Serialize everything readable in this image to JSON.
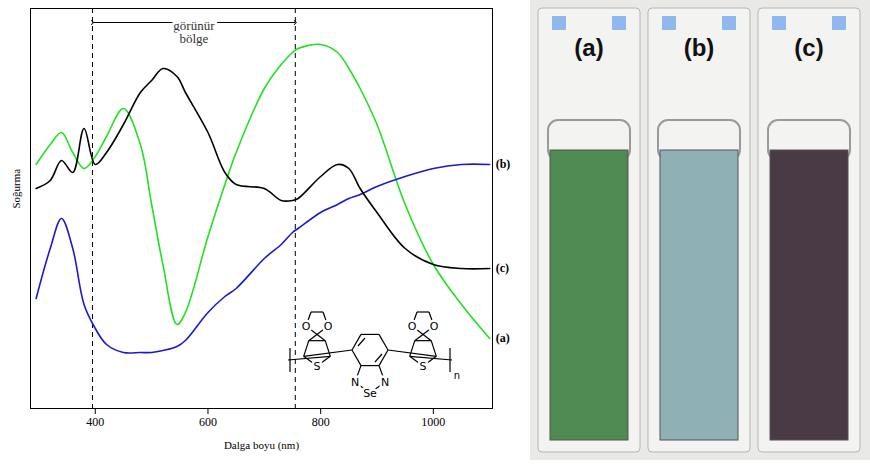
{
  "chart_data": {
    "type": "line",
    "x_label": "Dalga boyu (nm)",
    "y_label": "Soğurma",
    "x": [
      295,
      320,
      340,
      360,
      380,
      400,
      420,
      450,
      480,
      500,
      520,
      545,
      560,
      600,
      630,
      650,
      700,
      730,
      750,
      760,
      800,
      830,
      850,
      870,
      900,
      950,
      1000,
      1050,
      1100
    ],
    "series": [
      {
        "name": "(a)",
        "color": "#22e022",
        "values": [
          0.61,
          0.66,
          0.69,
          0.64,
          0.6,
          0.63,
          0.68,
          0.75,
          0.66,
          0.51,
          0.36,
          0.21,
          0.24,
          0.43,
          0.56,
          0.64,
          0.8,
          0.86,
          0.89,
          0.9,
          0.91,
          0.89,
          0.85,
          0.8,
          0.71,
          0.51,
          0.36,
          0.26,
          0.175
        ]
      },
      {
        "name": "(b)",
        "color": "#1a1acc",
        "values": [
          0.275,
          0.4,
          0.475,
          0.4,
          0.26,
          0.2,
          0.16,
          0.14,
          0.14,
          0.14,
          0.145,
          0.155,
          0.17,
          0.24,
          0.28,
          0.3,
          0.375,
          0.41,
          0.44,
          0.45,
          0.49,
          0.51,
          0.525,
          0.535,
          0.555,
          0.58,
          0.6,
          0.61,
          0.61
        ]
      },
      {
        "name": "(c)",
        "color": "#000000",
        "values": [
          0.55,
          0.57,
          0.62,
          0.59,
          0.7,
          0.61,
          0.64,
          0.71,
          0.79,
          0.82,
          0.85,
          0.83,
          0.79,
          0.69,
          0.59,
          0.56,
          0.55,
          0.52,
          0.52,
          0.525,
          0.58,
          0.61,
          0.6,
          0.55,
          0.49,
          0.4,
          0.36,
          0.35,
          0.35
        ]
      }
    ],
    "xlim": [
      285,
      1105
    ],
    "xticks": [
      400,
      600,
      800,
      1000
    ],
    "ylim": [
      0,
      1
    ],
    "tick_labels": "x",
    "annotations": [
      {
        "text": "görünür bölge",
        "x1": 395,
        "x2": 755
      }
    ]
  },
  "inset_structure": {
    "oxygen": "O",
    "sulfur": "S",
    "nitrogen": "N",
    "selenium": "Se",
    "repeat": "n"
  },
  "photos": [
    {
      "label": "(a)",
      "color": "#4f8a52"
    },
    {
      "label": "(b)",
      "color": "#8fb0b4"
    },
    {
      "label": "(c)",
      "color": "#4a3a46"
    }
  ]
}
